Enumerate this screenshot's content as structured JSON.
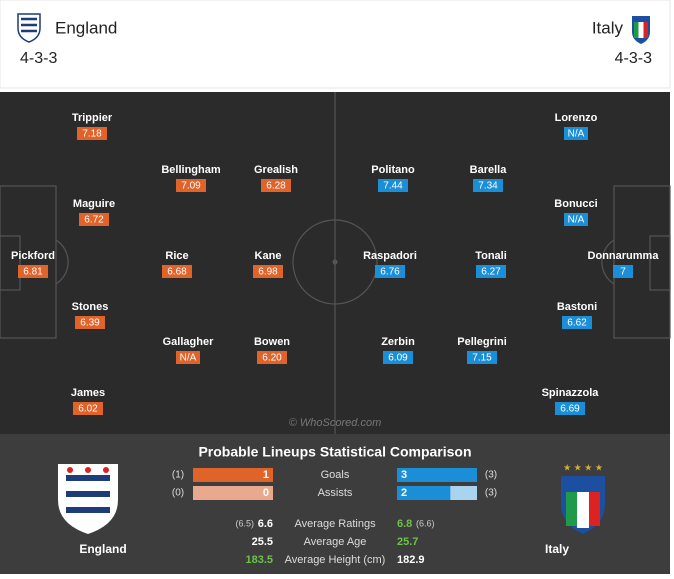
{
  "header": {
    "home": {
      "name": "England",
      "formation": "4-3-3"
    },
    "away": {
      "name": "Italy",
      "formation": "4-3-3"
    }
  },
  "pitch": {
    "home_players": [
      {
        "name": "Trippier",
        "rating": "7.18"
      },
      {
        "name": "Bellingham",
        "rating": "7.09"
      },
      {
        "name": "Grealish",
        "rating": "6.28"
      },
      {
        "name": "Maguire",
        "rating": "6.72"
      },
      {
        "name": "Pickford",
        "rating": "6.81"
      },
      {
        "name": "Rice",
        "rating": "6.68"
      },
      {
        "name": "Kane",
        "rating": "6.98"
      },
      {
        "name": "Stones",
        "rating": "6.39"
      },
      {
        "name": "Gallagher",
        "rating": "N/A"
      },
      {
        "name": "Bowen",
        "rating": "6.20"
      },
      {
        "name": "James",
        "rating": "6.02"
      }
    ],
    "away_players": [
      {
        "name": "Lorenzo",
        "rating": "N/A"
      },
      {
        "name": "Politano",
        "rating": "7.44"
      },
      {
        "name": "Barella",
        "rating": "7.34"
      },
      {
        "name": "Bonucci",
        "rating": "N/A"
      },
      {
        "name": "Raspadori",
        "rating": "6.76"
      },
      {
        "name": "Tonali",
        "rating": "6.27"
      },
      {
        "name": "Donnarumma",
        "rating": "7"
      },
      {
        "name": "Bastoni",
        "rating": "6.62"
      },
      {
        "name": "Zerbin",
        "rating": "6.09"
      },
      {
        "name": "Pellegrini",
        "rating": "7.15"
      },
      {
        "name": "Spinazzola",
        "rating": "6.69"
      }
    ],
    "watermark": "© WhoScored.com"
  },
  "comparison": {
    "title": "Probable Lineups Statistical Comparison",
    "home_team": "England",
    "away_team": "Italy",
    "bar_rows": [
      {
        "label": "Goals",
        "home": 1,
        "away": 3,
        "home_total": {
          "value": 1,
          "label": "(1)"
        },
        "away_total": {
          "value": 3,
          "label": "(3)"
        }
      },
      {
        "label": "Assists",
        "home": 0,
        "away": 2,
        "home_total": {
          "value": 0,
          "label": "(0)"
        },
        "away_total": {
          "value": 3,
          "label": "(3)"
        }
      }
    ],
    "text_rows": [
      {
        "label": "Average Ratings",
        "home": "6.6",
        "away": "6.8",
        "home_note": "(6.5)",
        "away_note": "(6.6)",
        "highlight": "away"
      },
      {
        "label": "Average Age",
        "home": "25.5",
        "away": "25.7",
        "highlight": "away"
      },
      {
        "label": "Average Height (cm)",
        "home": "183.5",
        "away": "182.9",
        "highlight": "home"
      }
    ]
  }
}
